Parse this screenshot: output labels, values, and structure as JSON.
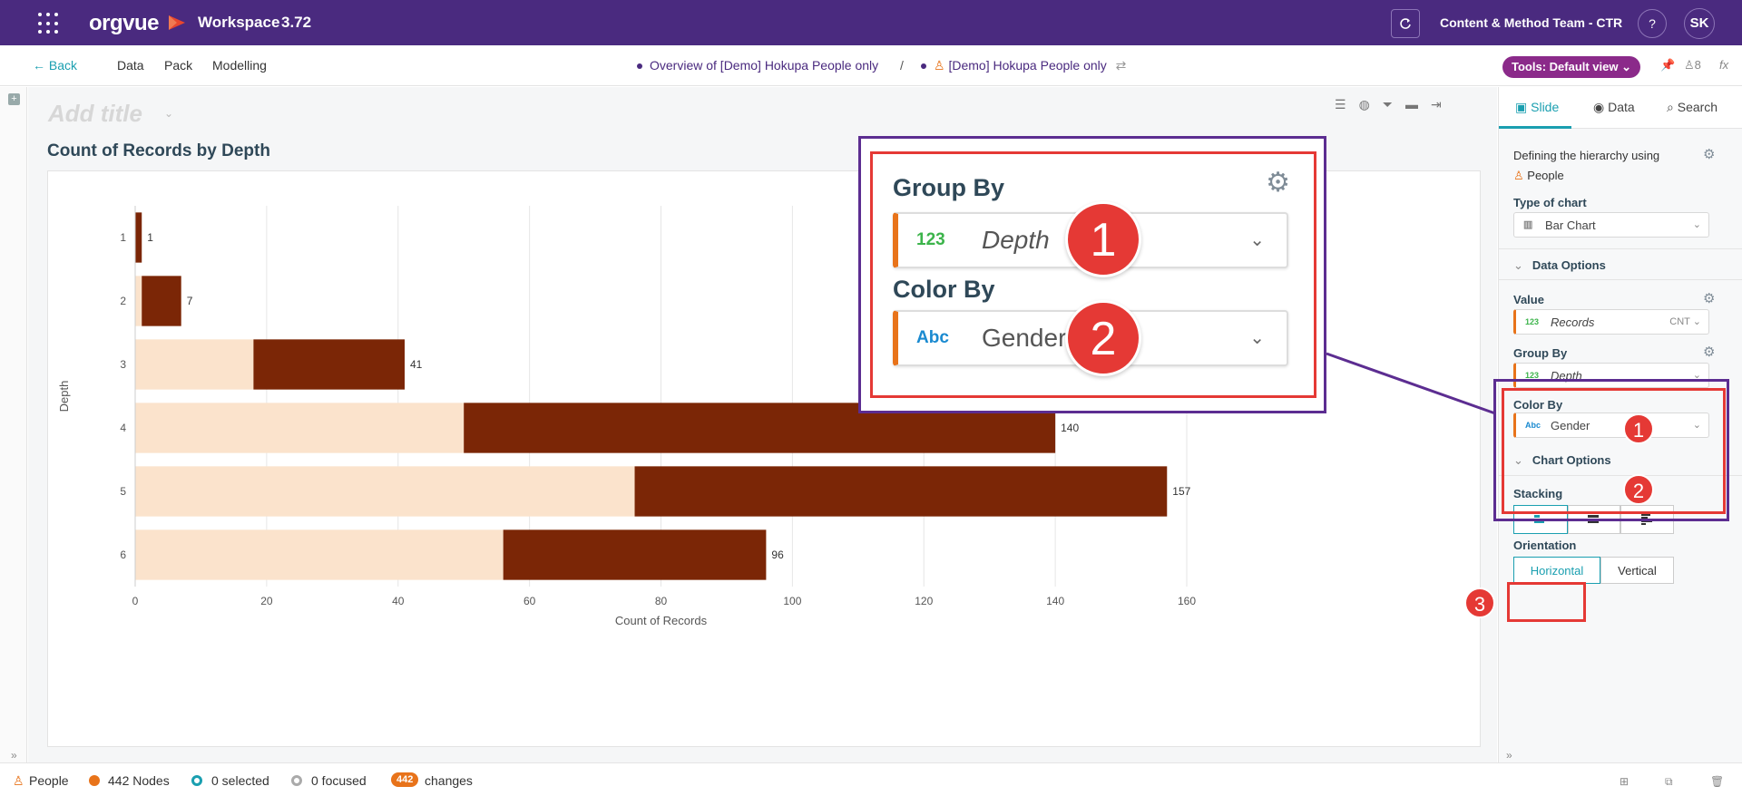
{
  "topbar": {
    "logo": "orgvue",
    "workspace_title": "Workspace",
    "workspace_version": "3.72",
    "team": "Content & Method Team - CTR",
    "help": "?",
    "avatar": "SK"
  },
  "nav": {
    "back": "Back",
    "items": [
      "Data",
      "Pack",
      "Modelling"
    ],
    "crumb1": "Overview of [Demo] Hokupa People only",
    "separator": "/",
    "crumb2": "[Demo] Hokupa People only",
    "tools": "Tools: Default view",
    "user_count": "8",
    "fx": "fx"
  },
  "main": {
    "add_title_placeholder": "Add title",
    "chart_title": "Count of Records by Depth"
  },
  "chart_data": {
    "type": "bar",
    "orientation": "horizontal",
    "stacking": "stacked",
    "categories": [
      "1",
      "2",
      "3",
      "4",
      "5",
      "6"
    ],
    "series": [
      {
        "color": "#fbe3cc",
        "values": [
          0,
          1,
          18,
          50,
          76,
          56
        ]
      },
      {
        "color": "#7b2606",
        "values": [
          1,
          6,
          23,
          90,
          81,
          40
        ]
      }
    ],
    "totals": [
      1,
      7,
      41,
      140,
      157,
      96
    ],
    "xlabel": "Count of Records",
    "ylabel": "Depth",
    "xlim": [
      0,
      160
    ],
    "xticks": [
      0,
      20,
      40,
      60,
      80,
      100,
      120,
      140,
      160
    ],
    "grid": true
  },
  "panel": {
    "tabs": [
      "Slide",
      "Data",
      "Search"
    ],
    "active_tab": "Slide",
    "hierarchy_label": "Defining the hierarchy using",
    "hierarchy_value": "People",
    "chart_type_label": "Type of chart",
    "chart_type_value": "Bar Chart",
    "data_options": "Data Options",
    "value_label": "Value",
    "value_field": "Records",
    "value_agg": "CNT",
    "group_by_label": "Group By",
    "group_by_value": "Depth",
    "color_by_label": "Color By",
    "color_by_value": "Gender",
    "chart_options": "Chart Options",
    "stacking_label": "Stacking",
    "orientation_label": "Orientation",
    "orientation_options": [
      "Horizontal",
      "Vertical"
    ],
    "orientation_selected": "Horizontal",
    "num_icon": "123",
    "abc_icon": "Abc"
  },
  "callout": {
    "group_by_label": "Group By",
    "group_by_value": "Depth",
    "color_by_label": "Color By",
    "color_by_value": "Gender",
    "num_icon": "123",
    "abc_icon": "Abc"
  },
  "badges": [
    "1",
    "2",
    "3"
  ],
  "status": {
    "dataset": "People",
    "nodes": "442 Nodes",
    "selected": "0 selected",
    "focused": "0 focused",
    "changes_count": "442",
    "changes_label": "changes"
  },
  "colors": {
    "header_bg": "#4a2a7f",
    "accent": "#1a9fb0",
    "tools_pill": "#8b2a8a",
    "highlight_red": "#e53935",
    "callout_border": "#5c2d91",
    "field_accent": "#e8731a"
  }
}
